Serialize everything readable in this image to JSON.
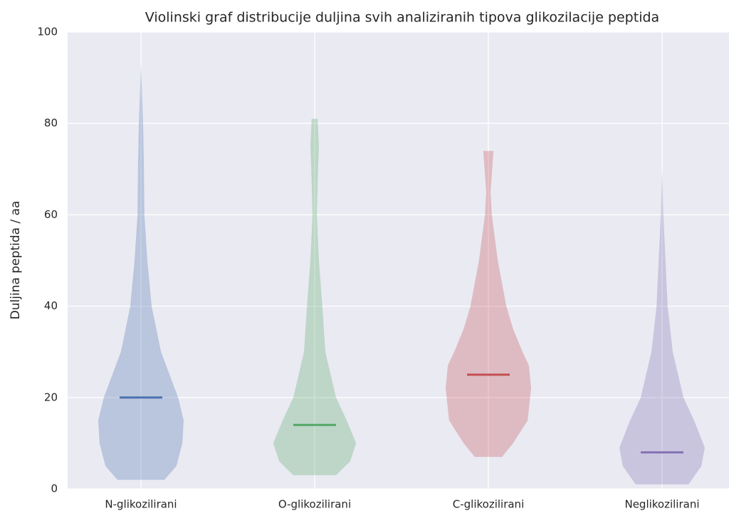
{
  "chart_data": {
    "type": "violin",
    "title": "Violinski graf distribucije duljina svih analiziranih tipova glikozilacije peptida",
    "y_label": "Duljina peptida / aa",
    "ylim": [
      0,
      100
    ],
    "yticks": [
      0,
      20,
      40,
      60,
      80,
      100
    ],
    "grid": true,
    "categories": [
      "N-glikozilirani",
      "O-glikozilirani",
      "C-glikozilirani",
      "Neglikozilirani"
    ],
    "series": [
      {
        "name": "N-glikozilirani",
        "color": "#4c72b0",
        "median": 20,
        "y": [
          2,
          5,
          10,
          15,
          20,
          25,
          30,
          40,
          50,
          60,
          70,
          80,
          93
        ],
        "width": [
          0.55,
          0.83,
          0.97,
          1.0,
          0.87,
          0.67,
          0.47,
          0.25,
          0.15,
          0.08,
          0.07,
          0.05,
          0
        ]
      },
      {
        "name": "O-glikozilirani",
        "color": "#55a868",
        "median": 14,
        "y": [
          3,
          6,
          10,
          15,
          20,
          30,
          40,
          50,
          60,
          70,
          75,
          81
        ],
        "width": [
          0.5,
          0.83,
          0.97,
          0.75,
          0.5,
          0.25,
          0.18,
          0.1,
          0.05,
          0.08,
          0.1,
          0.07
        ]
      },
      {
        "name": "C-glikozilirani",
        "color": "#c44e52",
        "median": 25,
        "y": [
          7,
          10,
          15,
          22,
          27,
          30,
          35,
          40,
          50,
          60,
          65,
          74
        ],
        "width": [
          0.32,
          0.58,
          0.92,
          1.0,
          0.95,
          0.8,
          0.58,
          0.42,
          0.22,
          0.08,
          0.05,
          0.12
        ]
      },
      {
        "name": "Neglikozilirani",
        "color": "#8172b2",
        "median": 8,
        "y": [
          1,
          5,
          9,
          15,
          20,
          30,
          40,
          50,
          60,
          70
        ],
        "width": [
          0.62,
          0.92,
          1.0,
          0.75,
          0.5,
          0.25,
          0.13,
          0.08,
          0.03,
          0
        ]
      }
    ]
  }
}
